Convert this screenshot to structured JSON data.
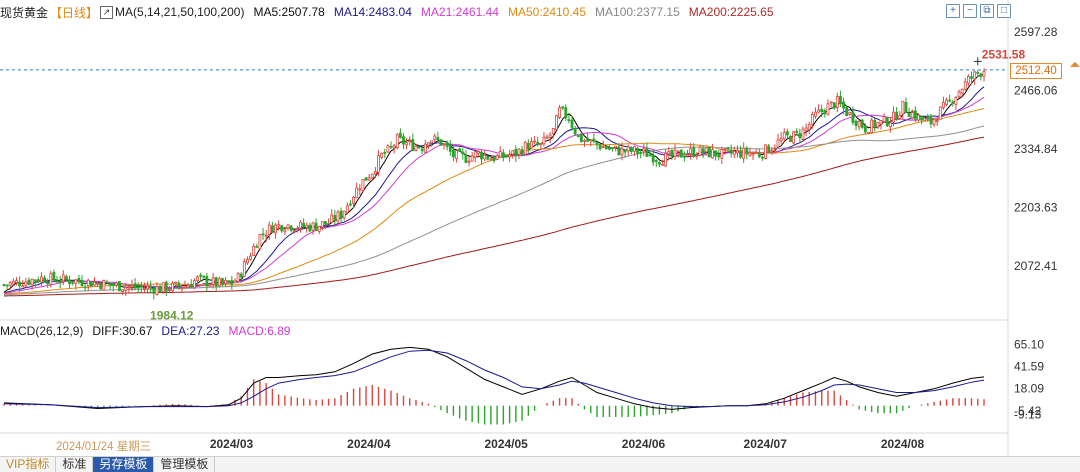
{
  "header": {
    "symbol": "现货黄金",
    "period": "【日线】",
    "ma_settings": "MA(5,14,21,50,100,200)",
    "ma5": "MA5:2507.78",
    "ma14": "MA14:2483.04",
    "ma21": "MA21:2461.44",
    "ma50": "MA50:2410.45",
    "ma100": "MA100:2377.15",
    "ma200": "MA200:2225.65"
  },
  "macd_header": {
    "settings": "MACD(26,12,9)",
    "diff": "DIFF:30.67",
    "dea": "DEA:27.23",
    "macd": "MACD:6.89"
  },
  "annotations": {
    "high": "2531.58",
    "low": "1984.12",
    "last_price": "2512.40",
    "date_tip": "2024/01/24 星期三"
  },
  "bottom_tabs": [
    "VIP指标",
    "标准",
    "另存模板",
    "管理模板"
  ],
  "icons": [
    "zoom-in-icon",
    "zoom-out-icon",
    "restore-icon",
    "maximize-icon"
  ],
  "colors": {
    "up": "#e0443c",
    "down": "#2aa52a",
    "ma5": "#000000",
    "ma14": "#1a1a90",
    "ma21": "#d23bd2",
    "ma50": "#e08a10",
    "ma100": "#909090",
    "ma200": "#a01a1a",
    "diff": "#000000",
    "dea": "#1a1a90"
  },
  "chart_data": [
    {
      "type": "candlestick",
      "title": "现货黄金 【日线】",
      "x_ticks": [
        "2024/03",
        "2024/04",
        "2024/05",
        "2024/06",
        "2024/07",
        "2024/08"
      ],
      "y_ticks": [
        2072.41,
        2203.63,
        2334.84,
        2466.06,
        2597.28
      ],
      "ylim": [
        1960,
        2620
      ],
      "series": [
        {
          "name": "MA5",
          "last": 2507.78
        },
        {
          "name": "MA14",
          "last": 2483.04
        },
        {
          "name": "MA21",
          "last": 2461.44
        },
        {
          "name": "MA50",
          "last": 2410.45
        },
        {
          "name": "MA100",
          "last": 2377.15
        },
        {
          "name": "MA200",
          "last": 2225.65
        }
      ],
      "close_points": [
        [
          0,
          2030
        ],
        [
          12,
          2045
        ],
        [
          25,
          2038
        ],
        [
          40,
          2025
        ],
        [
          50,
          2022
        ],
        [
          58,
          2028
        ],
        [
          62,
          2042
        ],
        [
          70,
          2030
        ],
        [
          73,
          2035
        ],
        [
          75,
          2045
        ],
        [
          78,
          2088
        ],
        [
          82,
          2140
        ],
        [
          86,
          2160
        ],
        [
          90,
          2165
        ],
        [
          95,
          2160
        ],
        [
          100,
          2162
        ],
        [
          104,
          2170
        ],
        [
          108,
          2188
        ],
        [
          111,
          2222
        ],
        [
          114,
          2255
        ],
        [
          118,
          2285
        ],
        [
          121,
          2320
        ],
        [
          124,
          2335
        ],
        [
          126,
          2355
        ],
        [
          130,
          2345
        ],
        [
          134,
          2340
        ],
        [
          136,
          2360
        ],
        [
          140,
          2350
        ],
        [
          144,
          2320
        ],
        [
          148,
          2315
        ],
        [
          152,
          2325
        ],
        [
          156,
          2315
        ],
        [
          160,
          2318
        ],
        [
          164,
          2325
        ],
        [
          168,
          2345
        ],
        [
          172,
          2342
        ],
        [
          176,
          2375
        ],
        [
          178,
          2420
        ],
        [
          181,
          2405
        ],
        [
          184,
          2360
        ],
        [
          186,
          2355
        ],
        [
          190,
          2345
        ],
        [
          194,
          2335
        ],
        [
          198,
          2330
        ],
        [
          202,
          2330
        ],
        [
          206,
          2325
        ],
        [
          210,
          2312
        ],
        [
          214,
          2318
        ],
        [
          218,
          2325
        ],
        [
          222,
          2330
        ],
        [
          226,
          2326
        ],
        [
          230,
          2322
        ],
        [
          234,
          2326
        ],
        [
          238,
          2326
        ],
        [
          242,
          2324
        ],
        [
          246,
          2340
        ],
        [
          250,
          2360
        ],
        [
          254,
          2365
        ],
        [
          257,
          2380
        ],
        [
          260,
          2410
        ],
        [
          264,
          2430
        ],
        [
          267,
          2440
        ],
        [
          270,
          2418
        ],
        [
          273,
          2400
        ],
        [
          276,
          2382
        ],
        [
          279,
          2390
        ],
        [
          282,
          2395
        ],
        [
          285,
          2405
        ],
        [
          288,
          2430
        ],
        [
          291,
          2415
        ],
        [
          294,
          2400
        ],
        [
          297,
          2395
        ],
        [
          300,
          2420
        ],
        [
          303,
          2440
        ],
        [
          306,
          2465
        ],
        [
          309,
          2490
        ],
        [
          312,
          2505
        ],
        [
          314,
          2512.4
        ]
      ],
      "annotations": [
        {
          "text": "2531.58",
          "x": 312,
          "y": 2531.58
        },
        {
          "text": "1984.12",
          "x": 50,
          "y": 1984.12
        },
        {
          "text": "2512.40",
          "x": 314,
          "y": 2512.4
        }
      ]
    },
    {
      "type": "line",
      "title": "MACD(26,12,9)",
      "y_ticks": [
        65.1,
        41.59,
        18.09,
        -5.42,
        -9.13
      ],
      "ylim": [
        -28,
        72
      ],
      "series": [
        {
          "name": "DIFF",
          "points": [
            [
              0,
              3
            ],
            [
              15,
              1
            ],
            [
              30,
              -3
            ],
            [
              45,
              -1
            ],
            [
              55,
              0
            ],
            [
              65,
              -1
            ],
            [
              72,
              1
            ],
            [
              76,
              8
            ],
            [
              80,
              24
            ],
            [
              84,
              30
            ],
            [
              88,
              30
            ],
            [
              95,
              32
            ],
            [
              100,
              33
            ],
            [
              106,
              36
            ],
            [
              112,
              45
            ],
            [
              118,
              55
            ],
            [
              124,
              60
            ],
            [
              130,
              62
            ],
            [
              136,
              60
            ],
            [
              142,
              52
            ],
            [
              148,
              40
            ],
            [
              154,
              28
            ],
            [
              160,
              20
            ],
            [
              166,
              12
            ],
            [
              172,
              18
            ],
            [
              178,
              26
            ],
            [
              182,
              30
            ],
            [
              186,
              22
            ],
            [
              190,
              14
            ],
            [
              196,
              8
            ],
            [
              202,
              2
            ],
            [
              208,
              -2
            ],
            [
              214,
              -4
            ],
            [
              220,
              -2
            ],
            [
              226,
              -1
            ],
            [
              232,
              0
            ],
            [
              238,
              0
            ],
            [
              244,
              2
            ],
            [
              250,
              8
            ],
            [
              256,
              16
            ],
            [
              262,
              24
            ],
            [
              266,
              30
            ],
            [
              270,
              26
            ],
            [
              274,
              20
            ],
            [
              280,
              14
            ],
            [
              286,
              10
            ],
            [
              292,
              14
            ],
            [
              298,
              18
            ],
            [
              304,
              24
            ],
            [
              310,
              29
            ],
            [
              314,
              30.67
            ]
          ]
        },
        {
          "name": "DEA",
          "points": [
            [
              0,
              2
            ],
            [
              15,
              1
            ],
            [
              30,
              -2
            ],
            [
              45,
              -1
            ],
            [
              55,
              -1
            ],
            [
              65,
              -1
            ],
            [
              72,
              0
            ],
            [
              76,
              3
            ],
            [
              80,
              10
            ],
            [
              84,
              18
            ],
            [
              88,
              24
            ],
            [
              95,
              28
            ],
            [
              100,
              30
            ],
            [
              106,
              32
            ],
            [
              112,
              36
            ],
            [
              118,
              44
            ],
            [
              124,
              52
            ],
            [
              130,
              58
            ],
            [
              136,
              59
            ],
            [
              142,
              56
            ],
            [
              148,
              48
            ],
            [
              154,
              38
            ],
            [
              160,
              30
            ],
            [
              166,
              20
            ],
            [
              172,
              18
            ],
            [
              178,
              22
            ],
            [
              182,
              26
            ],
            [
              186,
              24
            ],
            [
              190,
              20
            ],
            [
              196,
              14
            ],
            [
              202,
              8
            ],
            [
              208,
              3
            ],
            [
              214,
              0
            ],
            [
              220,
              -1
            ],
            [
              226,
              -1
            ],
            [
              232,
              0
            ],
            [
              238,
              0
            ],
            [
              244,
              1
            ],
            [
              250,
              4
            ],
            [
              256,
              9
            ],
            [
              262,
              16
            ],
            [
              266,
              22
            ],
            [
              270,
              23
            ],
            [
              274,
              22
            ],
            [
              280,
              18
            ],
            [
              286,
              14
            ],
            [
              292,
              14
            ],
            [
              298,
              16
            ],
            [
              304,
              20
            ],
            [
              310,
              25
            ],
            [
              314,
              27.23
            ]
          ]
        }
      ],
      "histogram_last": 6.89
    }
  ]
}
